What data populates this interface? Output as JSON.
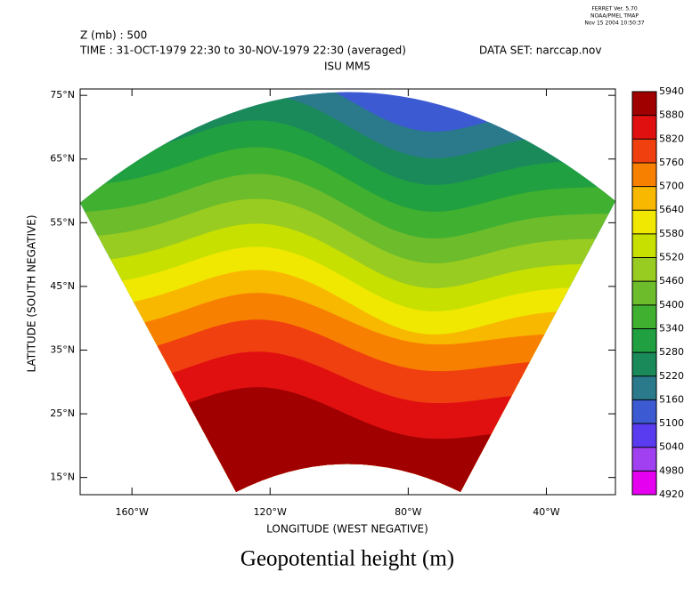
{
  "header": {
    "program": "FERRET Ver. 5.70",
    "org": "NOAA/PMEL TMAP",
    "date": "Nov 15 2004 10:50:37"
  },
  "labels": {
    "variable": "Z (mb) : 500",
    "time": "TIME : 31-OCT-1979 22:30 to 30-NOV-1979 22:30 (averaged)",
    "dataset": "DATA SET: narccap.nov",
    "subtitle": "ISU MM5",
    "title": "Geopotential height (m)"
  },
  "axes": {
    "x_label": "LONGITUDE (WEST NEGATIVE)",
    "y_label": "LATITUDE (SOUTH NEGATIVE)",
    "xlim": [
      -175,
      -20
    ],
    "ylim": [
      12.3,
      76
    ],
    "xticks": [
      {
        "value": -160,
        "label": "160°W"
      },
      {
        "value": -120,
        "label": "120°W"
      },
      {
        "value": -80,
        "label": "80°W"
      },
      {
        "value": -40,
        "label": "40°W"
      }
    ],
    "yticks": [
      {
        "value": 15,
        "label": "15°N"
      },
      {
        "value": 25,
        "label": "25°N"
      },
      {
        "value": 35,
        "label": "35°N"
      },
      {
        "value": 45,
        "label": "45°N"
      },
      {
        "value": 55,
        "label": "55°N"
      },
      {
        "value": 65,
        "label": "65°N"
      },
      {
        "value": 75,
        "label": "75°N"
      }
    ]
  },
  "colorbar": {
    "levels": [
      4920,
      4980,
      5040,
      5100,
      5160,
      5220,
      5280,
      5340,
      5400,
      5460,
      5520,
      5580,
      5640,
      5700,
      5760,
      5820,
      5880,
      5940
    ],
    "colors": [
      "#e600f0",
      "#a040f0",
      "#5a3cf0",
      "#3c5ad2",
      "#2a7a8c",
      "#1a8a5a",
      "#20a040",
      "#40b030",
      "#6cbc2c",
      "#98cc20",
      "#c8e000",
      "#f0e800",
      "#f8b800",
      "#f88000",
      "#f04010",
      "#e01010",
      "#a00000"
    ]
  }
}
